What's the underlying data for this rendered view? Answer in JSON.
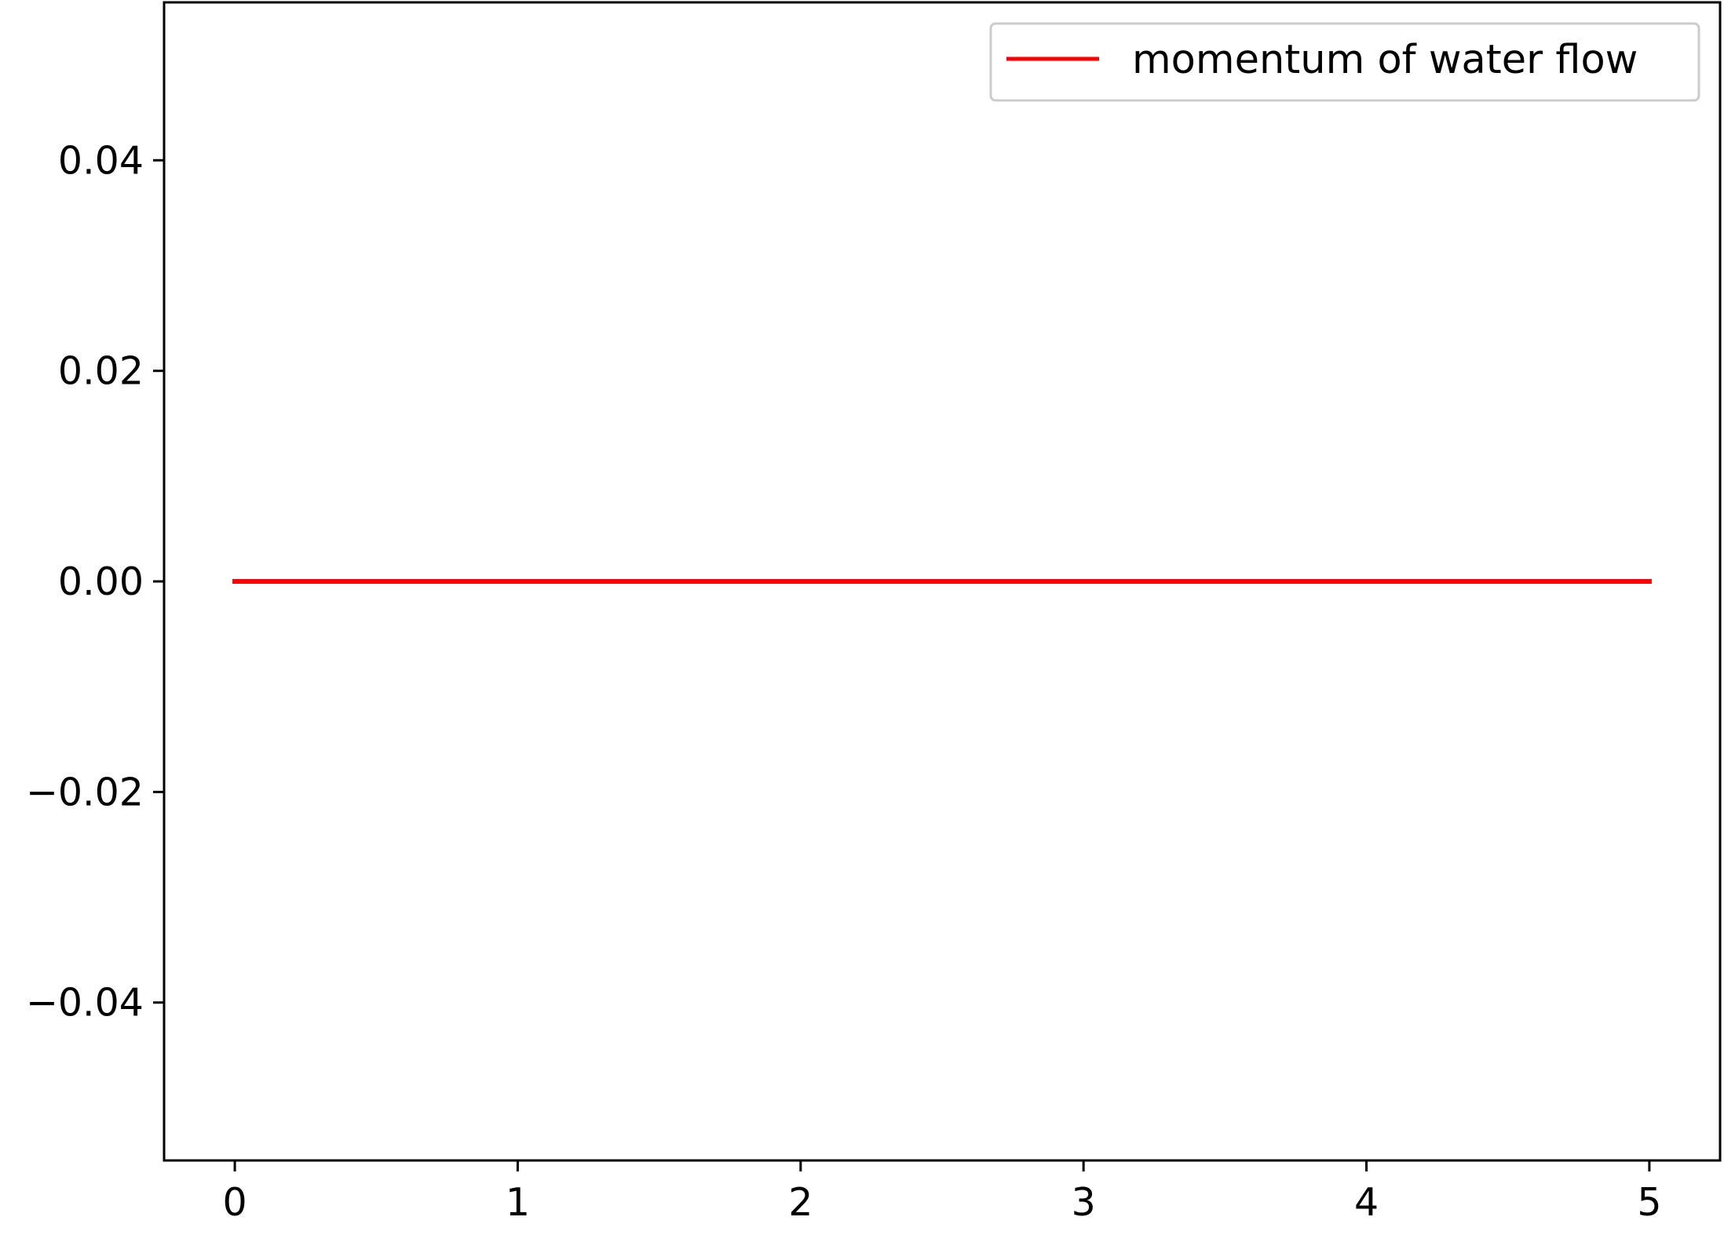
{
  "chart_data": {
    "type": "line",
    "title": "",
    "xlabel": "",
    "ylabel": "",
    "xlim": [
      -0.25,
      5.25
    ],
    "ylim": [
      -0.055,
      0.055
    ],
    "x_ticks": [
      0,
      1,
      2,
      3,
      4,
      5
    ],
    "x_tick_labels": [
      "0",
      "1",
      "2",
      "3",
      "4",
      "5"
    ],
    "y_ticks": [
      0.04,
      0.02,
      0.0,
      -0.02,
      -0.04
    ],
    "y_tick_labels": [
      "0.04",
      "0.02",
      "0.00",
      "−0.02",
      "−0.04"
    ],
    "grid": false,
    "legend_position": "top-right",
    "series": [
      {
        "name": "momentum of water flow",
        "color": "#ff0000",
        "x": [
          0,
          1,
          2,
          3,
          4,
          5
        ],
        "y": [
          0,
          0,
          0,
          0,
          0,
          0
        ]
      }
    ]
  }
}
